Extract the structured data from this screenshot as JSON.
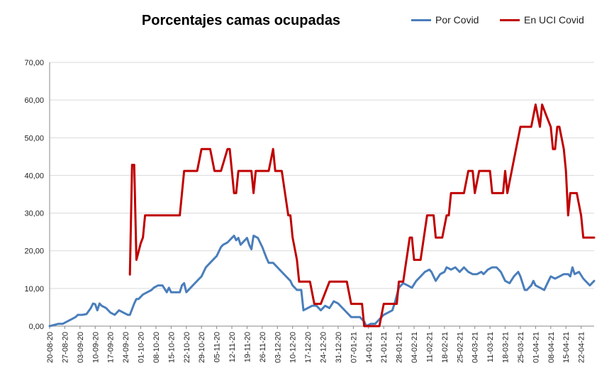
{
  "chart_data": {
    "type": "line",
    "title": "Porcentajes camas ocupadas",
    "xlabel": "",
    "ylabel": "",
    "ylim": [
      0,
      70
    ],
    "grid": true,
    "legend_position": "top-right",
    "y_ticks": [
      "0,00",
      "10,00",
      "20,00",
      "30,00",
      "40,00",
      "50,00",
      "60,00",
      "70,00"
    ],
    "x_ticks": [
      "20-08-20",
      "27-08-20",
      "03-09-20",
      "10-09-20",
      "17-09-20",
      "24-09-20",
      "01-10-20",
      "08-10-20",
      "15-10-20",
      "22-10-20",
      "29-10-20",
      "05-11-20",
      "12-11-20",
      "19-11-20",
      "26-11-20",
      "03-12-20",
      "10-12-20",
      "17-12-20",
      "24-12-20",
      "31-12-20",
      "07-01-21",
      "14-01-21",
      "21-01-21",
      "28-01-21",
      "04-02-21",
      "11-02-21",
      "18-02-21",
      "25-02-21",
      "04-03-21",
      "11-03-21",
      "18-03-21",
      "25-03-21",
      "01-04-21",
      "08-04-21",
      "15-04-21",
      "22-04-21"
    ],
    "x_start": "2020-08-20",
    "x_end": "2021-04-28",
    "series": [
      {
        "name": "Por Covid",
        "color": "#4a7ebb",
        "points": [
          [
            "2020-08-20",
            0
          ],
          [
            "2020-08-22",
            0.3
          ],
          [
            "2020-08-24",
            0.6
          ],
          [
            "2020-08-26",
            0.6
          ],
          [
            "2020-08-28",
            1.2
          ],
          [
            "2020-08-30",
            1.8
          ],
          [
            "2020-09-01",
            2.4
          ],
          [
            "2020-09-02",
            3
          ],
          [
            "2020-09-04",
            3
          ],
          [
            "2020-09-06",
            3.2
          ],
          [
            "2020-09-08",
            4.8
          ],
          [
            "2020-09-09",
            6
          ],
          [
            "2020-09-10",
            5.8
          ],
          [
            "2020-09-11",
            4.2
          ],
          [
            "2020-09-12",
            6
          ],
          [
            "2020-09-13",
            5.4
          ],
          [
            "2020-09-15",
            4.8
          ],
          [
            "2020-09-17",
            3.6
          ],
          [
            "2020-09-19",
            3
          ],
          [
            "2020-09-21",
            4.2
          ],
          [
            "2020-09-23",
            3.6
          ],
          [
            "2020-09-25",
            3
          ],
          [
            "2020-09-26",
            3
          ],
          [
            "2020-09-28",
            6
          ],
          [
            "2020-09-29",
            7.2
          ],
          [
            "2020-09-30",
            7.2
          ],
          [
            "2020-10-02",
            8.4
          ],
          [
            "2020-10-04",
            9
          ],
          [
            "2020-10-06",
            9.6
          ],
          [
            "2020-10-07",
            10.2
          ],
          [
            "2020-10-09",
            10.8
          ],
          [
            "2020-10-11",
            10.8
          ],
          [
            "2020-10-13",
            9
          ],
          [
            "2020-10-14",
            10.2
          ],
          [
            "2020-10-15",
            9
          ],
          [
            "2020-10-17",
            9
          ],
          [
            "2020-10-19",
            9
          ],
          [
            "2020-10-20",
            10.8
          ],
          [
            "2020-10-21",
            11.4
          ],
          [
            "2020-10-22",
            9
          ],
          [
            "2020-10-24",
            10.2
          ],
          [
            "2020-10-26",
            11.4
          ],
          [
            "2020-10-28",
            12.6
          ],
          [
            "2020-10-29",
            13.2
          ],
          [
            "2020-10-31",
            15.6
          ],
          [
            "2020-11-02",
            16.8
          ],
          [
            "2020-11-04",
            18
          ],
          [
            "2020-11-05",
            18.6
          ],
          [
            "2020-11-07",
            21
          ],
          [
            "2020-11-08",
            21.6
          ],
          [
            "2020-11-10",
            22.2
          ],
          [
            "2020-11-12",
            23.4
          ],
          [
            "2020-11-13",
            24
          ],
          [
            "2020-11-14",
            22.8
          ],
          [
            "2020-11-15",
            23.4
          ],
          [
            "2020-11-16",
            21.6
          ],
          [
            "2020-11-18",
            22.8
          ],
          [
            "2020-11-19",
            23.4
          ],
          [
            "2020-11-20",
            21.6
          ],
          [
            "2020-11-21",
            20.4
          ],
          [
            "2020-11-22",
            24
          ],
          [
            "2020-11-24",
            23.4
          ],
          [
            "2020-11-26",
            21
          ],
          [
            "2020-11-28",
            18
          ],
          [
            "2020-11-29",
            16.8
          ],
          [
            "2020-12-01",
            16.8
          ],
          [
            "2020-12-03",
            15.6
          ],
          [
            "2020-12-05",
            14.4
          ],
          [
            "2020-12-07",
            13.2
          ],
          [
            "2020-12-09",
            12
          ],
          [
            "2020-12-10",
            10.8
          ],
          [
            "2020-12-12",
            9.6
          ],
          [
            "2020-12-14",
            9.6
          ],
          [
            "2020-12-15",
            4.2
          ],
          [
            "2020-12-17",
            4.8
          ],
          [
            "2020-12-19",
            5.4
          ],
          [
            "2020-12-21",
            5.4
          ],
          [
            "2020-12-23",
            4.2
          ],
          [
            "2020-12-25",
            5.4
          ],
          [
            "2020-12-27",
            4.8
          ],
          [
            "2020-12-29",
            6.6
          ],
          [
            "2020-12-31",
            6
          ],
          [
            "2021-01-02",
            4.8
          ],
          [
            "2021-01-04",
            3.6
          ],
          [
            "2021-01-06",
            2.4
          ],
          [
            "2021-01-08",
            2.4
          ],
          [
            "2021-01-10",
            2.4
          ],
          [
            "2021-01-12",
            1.2
          ],
          [
            "2021-01-13",
            0
          ],
          [
            "2021-01-15",
            0.6
          ],
          [
            "2021-01-17",
            0.6
          ],
          [
            "2021-01-19",
            1.8
          ],
          [
            "2021-01-21",
            3
          ],
          [
            "2021-01-23",
            3.6
          ],
          [
            "2021-01-25",
            4.2
          ],
          [
            "2021-01-26",
            6
          ],
          [
            "2021-01-28",
            10.2
          ],
          [
            "2021-01-30",
            11.4
          ],
          [
            "2021-02-01",
            10.8
          ],
          [
            "2021-02-03",
            10.2
          ],
          [
            "2021-02-05",
            12
          ],
          [
            "2021-02-07",
            13.2
          ],
          [
            "2021-02-09",
            14.4
          ],
          [
            "2021-02-11",
            15
          ],
          [
            "2021-02-12",
            14.4
          ],
          [
            "2021-02-14",
            12
          ],
          [
            "2021-02-16",
            13.8
          ],
          [
            "2021-02-18",
            14.4
          ],
          [
            "2021-02-19",
            15.6
          ],
          [
            "2021-02-21",
            15
          ],
          [
            "2021-02-23",
            15.6
          ],
          [
            "2021-02-25",
            14.4
          ],
          [
            "2021-02-27",
            15.6
          ],
          [
            "2021-03-01",
            14.4
          ],
          [
            "2021-03-03",
            13.8
          ],
          [
            "2021-03-05",
            13.8
          ],
          [
            "2021-03-07",
            14.4
          ],
          [
            "2021-03-08",
            13.8
          ],
          [
            "2021-03-10",
            15
          ],
          [
            "2021-03-12",
            15.6
          ],
          [
            "2021-03-14",
            15.6
          ],
          [
            "2021-03-16",
            14.4
          ],
          [
            "2021-03-18",
            12
          ],
          [
            "2021-03-20",
            11.4
          ],
          [
            "2021-03-22",
            13.2
          ],
          [
            "2021-03-24",
            14.4
          ],
          [
            "2021-03-25",
            13.2
          ],
          [
            "2021-03-27",
            9.6
          ],
          [
            "2021-03-28",
            9.6
          ],
          [
            "2021-03-30",
            10.8
          ],
          [
            "2021-03-31",
            12
          ],
          [
            "2021-04-01",
            10.8
          ],
          [
            "2021-04-03",
            10.2
          ],
          [
            "2021-04-05",
            9.6
          ],
          [
            "2021-04-07",
            12
          ],
          [
            "2021-04-08",
            13.2
          ],
          [
            "2021-04-10",
            12.6
          ],
          [
            "2021-04-12",
            13.2
          ],
          [
            "2021-04-14",
            13.8
          ],
          [
            "2021-04-16",
            13.8
          ],
          [
            "2021-04-17",
            13.2
          ],
          [
            "2021-04-18",
            15.6
          ],
          [
            "2021-04-19",
            13.8
          ],
          [
            "2021-04-21",
            14.4
          ],
          [
            "2021-04-23",
            12.6
          ],
          [
            "2021-04-25",
            11.4
          ],
          [
            "2021-04-26",
            10.8
          ],
          [
            "2021-04-28",
            12
          ]
        ]
      },
      {
        "name": "En UCI Covid",
        "color": "#c00000",
        "points": [
          [
            "2020-09-26",
            13.7
          ],
          [
            "2020-09-27",
            42.8
          ],
          [
            "2020-09-28",
            42.8
          ],
          [
            "2020-09-29",
            17.6
          ],
          [
            "2020-10-01",
            22
          ],
          [
            "2020-10-02",
            23.5
          ],
          [
            "2020-10-03",
            29.4
          ],
          [
            "2020-10-06",
            29.4
          ],
          [
            "2020-10-09",
            29.4
          ],
          [
            "2020-10-12",
            29.4
          ],
          [
            "2020-10-15",
            29.4
          ],
          [
            "2020-10-18",
            29.4
          ],
          [
            "2020-10-19",
            29.4
          ],
          [
            "2020-10-21",
            41.2
          ],
          [
            "2020-10-24",
            41.2
          ],
          [
            "2020-10-27",
            41.2
          ],
          [
            "2020-10-29",
            47
          ],
          [
            "2020-11-01",
            47
          ],
          [
            "2020-11-02",
            47
          ],
          [
            "2020-11-04",
            41.2
          ],
          [
            "2020-11-07",
            41.2
          ],
          [
            "2020-11-10",
            47
          ],
          [
            "2020-11-11",
            47
          ],
          [
            "2020-11-13",
            35.3
          ],
          [
            "2020-11-14",
            35.3
          ],
          [
            "2020-11-15",
            41.2
          ],
          [
            "2020-11-18",
            41.2
          ],
          [
            "2020-11-21",
            41.2
          ],
          [
            "2020-11-22",
            35.3
          ],
          [
            "2020-11-23",
            41.2
          ],
          [
            "2020-11-26",
            41.2
          ],
          [
            "2020-11-29",
            41.2
          ],
          [
            "2020-12-01",
            47
          ],
          [
            "2020-12-02",
            41.2
          ],
          [
            "2020-12-05",
            41.2
          ],
          [
            "2020-12-08",
            29.4
          ],
          [
            "2020-12-09",
            29.4
          ],
          [
            "2020-12-10",
            23.5
          ],
          [
            "2020-12-12",
            17.6
          ],
          [
            "2020-12-13",
            11.8
          ],
          [
            "2020-12-16",
            11.8
          ],
          [
            "2020-12-18",
            11.8
          ],
          [
            "2020-12-20",
            5.9
          ],
          [
            "2020-12-23",
            5.9
          ],
          [
            "2020-12-27",
            11.8
          ],
          [
            "2020-12-30",
            11.8
          ],
          [
            "2021-01-02",
            11.8
          ],
          [
            "2021-01-04",
            11.8
          ],
          [
            "2021-01-06",
            5.9
          ],
          [
            "2021-01-09",
            5.9
          ],
          [
            "2021-01-11",
            5.9
          ],
          [
            "2021-01-12",
            0
          ],
          [
            "2021-01-15",
            0
          ],
          [
            "2021-01-19",
            0
          ],
          [
            "2021-01-21",
            5.9
          ],
          [
            "2021-01-24",
            5.9
          ],
          [
            "2021-01-27",
            5.9
          ],
          [
            "2021-01-28",
            11.8
          ],
          [
            "2021-01-30",
            11.8
          ],
          [
            "2021-02-02",
            23.5
          ],
          [
            "2021-02-03",
            23.5
          ],
          [
            "2021-02-04",
            17.6
          ],
          [
            "2021-02-07",
            17.6
          ],
          [
            "2021-02-10",
            29.4
          ],
          [
            "2021-02-13",
            29.4
          ],
          [
            "2021-02-14",
            23.5
          ],
          [
            "2021-02-17",
            23.5
          ],
          [
            "2021-02-19",
            29.4
          ],
          [
            "2021-02-20",
            29.4
          ],
          [
            "2021-02-21",
            35.3
          ],
          [
            "2021-02-24",
            35.3
          ],
          [
            "2021-02-27",
            35.3
          ],
          [
            "2021-03-01",
            41.2
          ],
          [
            "2021-03-03",
            41.2
          ],
          [
            "2021-03-04",
            35.3
          ],
          [
            "2021-03-06",
            41.2
          ],
          [
            "2021-03-09",
            41.2
          ],
          [
            "2021-03-11",
            41.2
          ],
          [
            "2021-03-12",
            35.3
          ],
          [
            "2021-03-15",
            35.3
          ],
          [
            "2021-03-17",
            35.3
          ],
          [
            "2021-03-18",
            41.2
          ],
          [
            "2021-03-19",
            35.3
          ],
          [
            "2021-03-21",
            41.2
          ],
          [
            "2021-03-23",
            47
          ],
          [
            "2021-03-25",
            52.9
          ],
          [
            "2021-03-28",
            52.9
          ],
          [
            "2021-03-30",
            52.9
          ],
          [
            "2021-04-01",
            58.8
          ],
          [
            "2021-04-03",
            52.9
          ],
          [
            "2021-04-04",
            58.8
          ],
          [
            "2021-04-06",
            55.8
          ],
          [
            "2021-04-08",
            52.9
          ],
          [
            "2021-04-09",
            47
          ],
          [
            "2021-04-10",
            47
          ],
          [
            "2021-04-11",
            52.9
          ],
          [
            "2021-04-12",
            52.9
          ],
          [
            "2021-04-14",
            47
          ],
          [
            "2021-04-15",
            41.2
          ],
          [
            "2021-04-16",
            29.4
          ],
          [
            "2021-04-17",
            35.3
          ],
          [
            "2021-04-20",
            35.3
          ],
          [
            "2021-04-22",
            29.4
          ],
          [
            "2021-04-23",
            23.5
          ],
          [
            "2021-04-26",
            23.5
          ],
          [
            "2021-04-28",
            23.5
          ]
        ]
      }
    ]
  }
}
